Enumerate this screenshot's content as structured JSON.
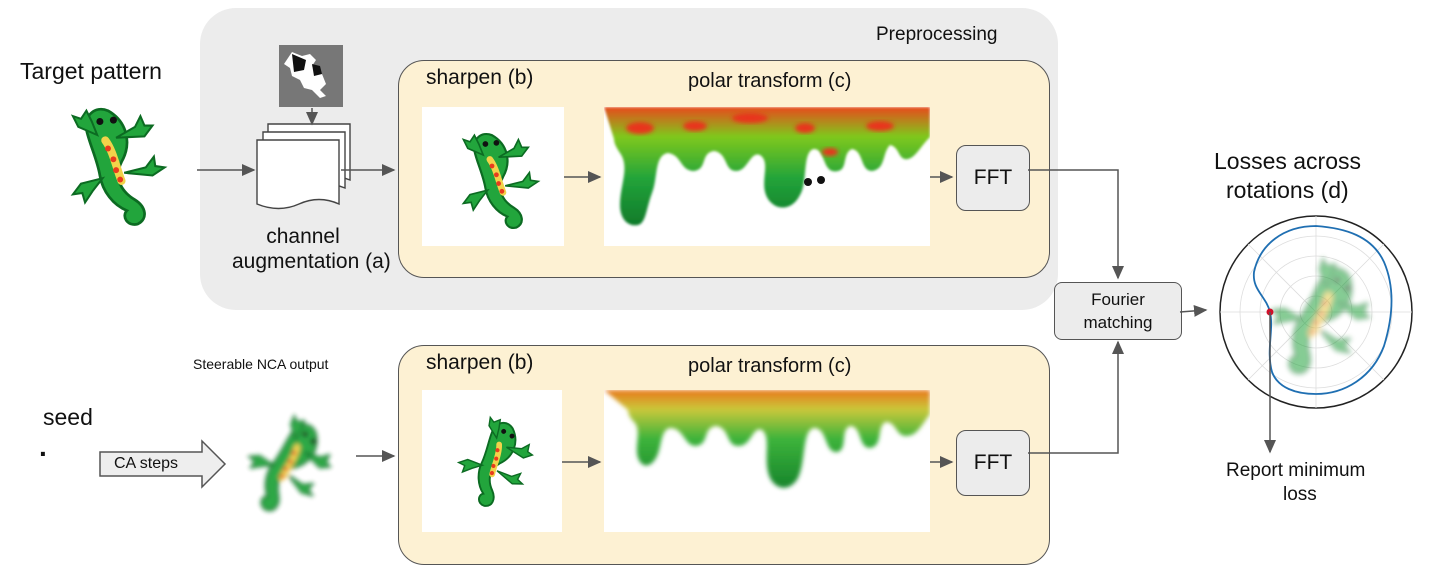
{
  "labels": {
    "target_pattern": "Target pattern",
    "preprocessing": "Preprocessing",
    "channel_aug_line1": "channel",
    "channel_aug_line2": "augmentation (a)",
    "sharpen_top": "sharpen (b)",
    "polar_top": "polar transform (c)",
    "fft_top": "FFT",
    "steerable_nca": "Steerable NCA output",
    "sharpen_bottom": "sharpen (b)",
    "polar_bottom": "polar transform (c)",
    "fft_bottom": "FFT",
    "seed": "seed",
    "seed_dot": "·",
    "ca_steps": "CA steps",
    "fourier_line1": "Fourier",
    "fourier_line2": "matching",
    "losses_line1": "Losses across",
    "losses_line2": "rotations (d)",
    "report_line1": "Report minimum",
    "report_line2": "loss"
  },
  "colors": {
    "preprocessing_bg": "#ececec",
    "stage_bg": "#fdf1d3",
    "box_border": "#555555",
    "arrow": "#555555",
    "lizard_green": "#1fa23a",
    "lizard_dark": "#0c6b22",
    "lizard_spots": "#e83c1e",
    "polar_curve": "#1f6fb2",
    "min_marker": "#d0102a"
  }
}
